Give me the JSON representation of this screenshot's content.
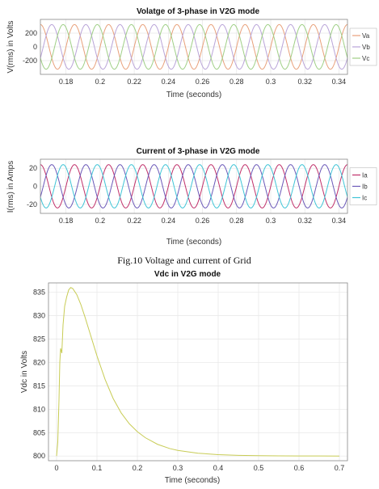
{
  "caption": "Fig.10 Voltage and current of Grid",
  "chart_data": [
    {
      "type": "line",
      "title": "Volatge of 3-phase in V2G mode",
      "xlabel": "Time (seconds)",
      "ylabel": "V(rms) in Volts",
      "xlim": [
        0.165,
        0.345
      ],
      "ylim": [
        -400,
        400
      ],
      "xticks": [
        0.18,
        0.2,
        0.22,
        0.24,
        0.26,
        0.28,
        0.3,
        0.32,
        0.34
      ],
      "xtick_labels": [
        "0.18",
        "0.2",
        "0.22",
        "0.24",
        "0.26",
        "0.28",
        "0.3",
        "0.32",
        "0.34"
      ],
      "yticks": [
        -200,
        0,
        200
      ],
      "ytick_labels": [
        "-200",
        "0",
        "200"
      ],
      "frequency_hz": 50,
      "amplitude": 325,
      "legend_position": "right",
      "grid": true,
      "series": [
        {
          "name": "Va",
          "phase_deg": 0,
          "color": "#e8a07a"
        },
        {
          "name": "Vb",
          "phase_deg": -120,
          "color": "#b9a4d8"
        },
        {
          "name": "Vc",
          "phase_deg": 120,
          "color": "#9fcf86"
        }
      ]
    },
    {
      "type": "line",
      "title": "Current of 3-phase in V2G mode",
      "xlabel": "Time (seconds)",
      "ylabel": "I(rms) in Amps",
      "xlim": [
        0.165,
        0.345
      ],
      "ylim": [
        -30,
        30
      ],
      "xticks": [
        0.18,
        0.2,
        0.22,
        0.24,
        0.26,
        0.28,
        0.3,
        0.32,
        0.34
      ],
      "xtick_labels": [
        "0.18",
        "0.2",
        "0.22",
        "0.24",
        "0.26",
        "0.28",
        "0.3",
        "0.32",
        "0.34"
      ],
      "yticks": [
        -20,
        0,
        20
      ],
      "ytick_labels": [
        "-20",
        "0",
        "20"
      ],
      "frequency_hz": 50,
      "amplitude": 24,
      "legend_position": "right",
      "grid": true,
      "series": [
        {
          "name": "Ia",
          "phase_deg": 0,
          "color": "#c0306a"
        },
        {
          "name": "Ib",
          "phase_deg": -120,
          "color": "#6a58b8"
        },
        {
          "name": "Ic",
          "phase_deg": 120,
          "color": "#3fc4d6"
        }
      ]
    },
    {
      "type": "line",
      "title": "Vdc in V2G mode",
      "xlabel": "Time (seconds)",
      "ylabel": "Vdc in Volts",
      "xlim": [
        -0.02,
        0.72
      ],
      "ylim": [
        799,
        837
      ],
      "xticks": [
        0,
        0.1,
        0.2,
        0.3,
        0.4,
        0.5,
        0.6,
        0.7
      ],
      "xtick_labels": [
        "0",
        "0.1",
        "0.2",
        "0.3",
        "0.4",
        "0.5",
        "0.6",
        "0.7"
      ],
      "yticks": [
        800,
        805,
        810,
        815,
        820,
        825,
        830,
        835
      ],
      "ytick_labels": [
        "800",
        "805",
        "810",
        "815",
        "820",
        "825",
        "830",
        "835"
      ],
      "grid": true,
      "series": [
        {
          "color": "#c8cc55",
          "x": [
            0,
            0.003,
            0.006,
            0.008,
            0.01,
            0.013,
            0.016,
            0.02,
            0.025,
            0.03,
            0.035,
            0.04,
            0.05,
            0.06,
            0.07,
            0.08,
            0.1,
            0.12,
            0.14,
            0.16,
            0.18,
            0.2,
            0.22,
            0.25,
            0.28,
            0.3,
            0.35,
            0.4,
            0.45,
            0.5,
            0.55,
            0.6,
            0.65,
            0.7
          ],
          "y": [
            800,
            803,
            812,
            820,
            823,
            822,
            828,
            832,
            834,
            835.5,
            836,
            835.8,
            834.5,
            832.4,
            829.8,
            827,
            821.4,
            816.4,
            812.3,
            809.2,
            806.9,
            805.2,
            803.9,
            802.5,
            801.6,
            801.2,
            800.6,
            800.3,
            800.15,
            800.08,
            800.04,
            800.02,
            800.01,
            800
          ]
        }
      ]
    }
  ]
}
